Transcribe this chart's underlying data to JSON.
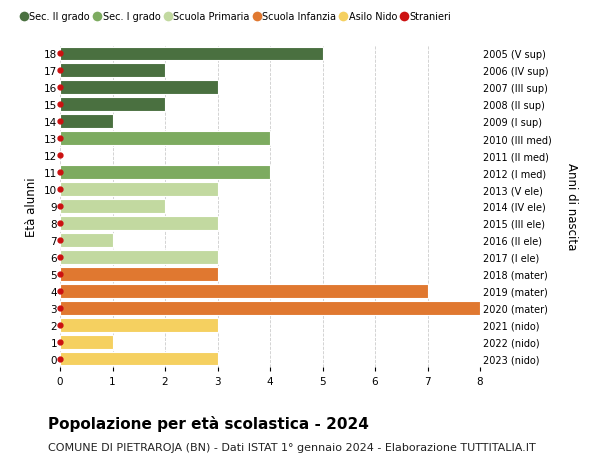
{
  "ages": [
    18,
    17,
    16,
    15,
    14,
    13,
    12,
    11,
    10,
    9,
    8,
    7,
    6,
    5,
    4,
    3,
    2,
    1,
    0
  ],
  "right_labels": [
    "2005 (V sup)",
    "2006 (IV sup)",
    "2007 (III sup)",
    "2008 (II sup)",
    "2009 (I sup)",
    "2010 (III med)",
    "2011 (II med)",
    "2012 (I med)",
    "2013 (V ele)",
    "2014 (IV ele)",
    "2015 (III ele)",
    "2016 (II ele)",
    "2017 (I ele)",
    "2018 (mater)",
    "2019 (mater)",
    "2020 (mater)",
    "2021 (nido)",
    "2022 (nido)",
    "2023 (nido)"
  ],
  "bar_values": [
    5,
    2,
    3,
    2,
    1,
    4,
    0,
    4,
    3,
    2,
    3,
    1,
    3,
    3,
    7,
    8,
    3,
    1,
    3
  ],
  "bar_colors": [
    "#4a7040",
    "#4a7040",
    "#4a7040",
    "#4a7040",
    "#4a7040",
    "#7dab60",
    "#7dab60",
    "#7dab60",
    "#c2d9a0",
    "#c2d9a0",
    "#c2d9a0",
    "#c2d9a0",
    "#c2d9a0",
    "#e07830",
    "#e07830",
    "#e07830",
    "#f5d060",
    "#f5d060",
    "#f5d060"
  ],
  "stranieri_dots_ages": [
    18,
    17,
    16,
    15,
    14,
    13,
    12,
    11,
    10,
    9,
    8,
    7,
    6,
    5,
    4,
    3,
    2,
    1,
    0
  ],
  "legend_labels": [
    "Sec. II grado",
    "Sec. I grado",
    "Scuola Primaria",
    "Scuola Infanzia",
    "Asilo Nido",
    "Stranieri"
  ],
  "legend_colors": [
    "#4a7040",
    "#7dab60",
    "#c2d9a0",
    "#e07830",
    "#f5d060",
    "#cc1111"
  ],
  "ylabel": "Età alunni",
  "right_ylabel": "Anni di nascita",
  "xlim": [
    0,
    8
  ],
  "xticks": [
    0,
    1,
    2,
    3,
    4,
    5,
    6,
    7,
    8
  ],
  "title": "Popolazione per età scolastica - 2024",
  "subtitle": "COMUNE DI PIETRAROJA (BN) - Dati ISTAT 1° gennaio 2024 - Elaborazione TUTTITALIA.IT",
  "title_fontsize": 11,
  "subtitle_fontsize": 8,
  "bar_edgecolor": "white",
  "background_color": "#ffffff",
  "grid_color": "#cccccc"
}
